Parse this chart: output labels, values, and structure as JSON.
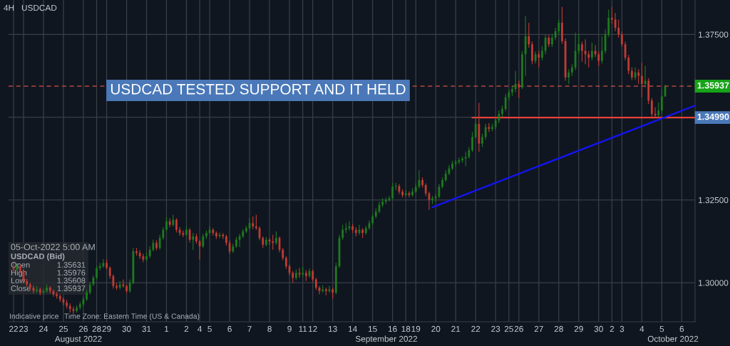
{
  "chart_data": {
    "type": "candlestick",
    "title": "4H",
    "subtitle": "USDCAD",
    "ylim": [
      1.2882,
      1.3854
    ],
    "categories": [
      "22",
      null,
      null,
      "23",
      null,
      null,
      null,
      null,
      null,
      "24",
      null,
      null,
      null,
      null,
      null,
      "25",
      null,
      null,
      null,
      null,
      null,
      "26",
      null,
      null,
      null,
      "28",
      null,
      null,
      "29",
      null,
      null,
      null,
      null,
      null,
      "30",
      null,
      null,
      null,
      null,
      null,
      "31",
      null,
      null,
      null,
      null,
      null,
      "1",
      null,
      null,
      null,
      null,
      null,
      "2",
      null,
      null,
      null,
      "4",
      null,
      null,
      "5",
      null,
      null,
      null,
      null,
      null,
      "6",
      null,
      null,
      null,
      null,
      null,
      "7",
      null,
      null,
      null,
      null,
      null,
      "8",
      null,
      null,
      null,
      null,
      null,
      "9",
      null,
      null,
      null,
      "11",
      null,
      null,
      "12",
      null,
      null,
      null,
      null,
      null,
      "13",
      null,
      null,
      null,
      null,
      null,
      "14",
      null,
      null,
      null,
      null,
      null,
      "15",
      null,
      null,
      null,
      null,
      null,
      "16",
      null,
      null,
      null,
      "18",
      null,
      null,
      "19",
      null,
      null,
      null,
      null,
      null,
      "20",
      null,
      null,
      null,
      null,
      null,
      "21",
      null,
      null,
      null,
      null,
      null,
      "22",
      null,
      null,
      null,
      null,
      null,
      "23",
      null,
      null,
      null,
      "25",
      null,
      null,
      "26",
      null,
      null,
      null,
      null,
      null,
      "27",
      null,
      null,
      null,
      null,
      null,
      "28",
      null,
      null,
      null,
      null,
      null,
      "29",
      null,
      null,
      null,
      null,
      null,
      "30",
      null,
      null,
      null,
      "2",
      null,
      null,
      "3",
      null,
      null,
      null,
      null,
      null,
      "4",
      null,
      null,
      null,
      null,
      null,
      "5",
      null,
      null,
      null,
      null,
      null,
      "6",
      null,
      null,
      null,
      null
    ],
    "yticks": [
      {
        "value": 1.3,
        "label": "1.30000"
      },
      {
        "value": 1.325,
        "label": "1.32500"
      },
      {
        "value": 1.35,
        "label": null
      },
      {
        "value": 1.375,
        "label": "1.37500"
      }
    ],
    "grid": true,
    "ohlc": [
      [
        1.3045,
        1.306,
        1.303,
        1.304
      ],
      [
        1.304,
        1.3058,
        1.3035,
        1.305
      ],
      [
        1.305,
        1.3055,
        1.3028,
        1.3035
      ],
      [
        1.3035,
        1.304,
        1.2998,
        1.3005
      ],
      [
        1.3005,
        1.3012,
        1.2988,
        1.2995
      ],
      [
        1.2995,
        1.3,
        1.2978,
        1.2985
      ],
      [
        1.2985,
        1.2992,
        1.2968,
        1.2975
      ],
      [
        1.2975,
        1.299,
        1.297,
        1.298
      ],
      [
        1.298,
        1.2985,
        1.2962,
        1.297
      ],
      [
        1.297,
        1.2982,
        1.2965,
        1.2975
      ],
      [
        1.2975,
        1.2995,
        1.297,
        1.2985
      ],
      [
        1.2985,
        1.299,
        1.2968,
        1.2975
      ],
      [
        1.2975,
        1.298,
        1.2958,
        1.2965
      ],
      [
        1.2965,
        1.2972,
        1.2952,
        1.296
      ],
      [
        1.296,
        1.2965,
        1.2942,
        1.295
      ],
      [
        1.295,
        1.2955,
        1.2932,
        1.294
      ],
      [
        1.294,
        1.2948,
        1.2922,
        1.293
      ],
      [
        1.293,
        1.2938,
        1.291,
        1.292
      ],
      [
        1.292,
        1.2928,
        1.2905,
        1.2915
      ],
      [
        1.2915,
        1.2932,
        1.291,
        1.2925
      ],
      [
        1.2925,
        1.2942,
        1.2918,
        1.2935
      ],
      [
        1.2935,
        1.2958,
        1.293,
        1.295
      ],
      [
        1.295,
        1.2978,
        1.2945,
        1.297
      ],
      [
        1.297,
        1.3002,
        1.2965,
        1.2995
      ],
      [
        1.2995,
        1.3022,
        1.299,
        1.3015
      ],
      [
        1.3015,
        1.3052,
        1.301,
        1.3045
      ],
      [
        1.3045,
        1.306,
        1.3038,
        1.305
      ],
      [
        1.305,
        1.3072,
        1.3045,
        1.306
      ],
      [
        1.306,
        1.307,
        1.304,
        1.3045
      ],
      [
        1.3045,
        1.305,
        1.3012,
        1.302
      ],
      [
        1.302,
        1.3025,
        1.2982,
        1.299
      ],
      [
        1.299,
        1.2998,
        1.2978,
        1.2985
      ],
      [
        1.2985,
        1.3005,
        1.298,
        1.2995
      ],
      [
        1.2995,
        1.301,
        1.2985,
        1.299
      ],
      [
        1.299,
        1.2995,
        1.2968,
        1.2975
      ],
      [
        1.2975,
        1.301,
        1.297,
        1.3
      ],
      [
        1.3,
        1.3105,
        1.2995,
        1.3095
      ],
      [
        1.3095,
        1.3105,
        1.3082,
        1.309
      ],
      [
        1.309,
        1.3098,
        1.3072,
        1.308
      ],
      [
        1.308,
        1.3088,
        1.3062,
        1.307
      ],
      [
        1.307,
        1.309,
        1.3065,
        1.308
      ],
      [
        1.308,
        1.311,
        1.3075,
        1.31
      ],
      [
        1.31,
        1.313,
        1.3095,
        1.312
      ],
      [
        1.312,
        1.3128,
        1.3098,
        1.3105
      ],
      [
        1.3105,
        1.3145,
        1.31,
        1.3135
      ],
      [
        1.3135,
        1.3168,
        1.313,
        1.316
      ],
      [
        1.316,
        1.3198,
        1.3155,
        1.3185
      ],
      [
        1.3185,
        1.3195,
        1.3168,
        1.3175
      ],
      [
        1.3175,
        1.3205,
        1.317,
        1.319
      ],
      [
        1.319,
        1.3195,
        1.3152,
        1.316
      ],
      [
        1.316,
        1.3168,
        1.3142,
        1.315
      ],
      [
        1.315,
        1.3158,
        1.3138,
        1.3145
      ],
      [
        1.3145,
        1.317,
        1.314,
        1.316
      ],
      [
        1.316,
        1.3165,
        1.3122,
        1.313
      ],
      [
        1.313,
        1.315,
        1.31,
        1.314
      ],
      [
        1.314,
        1.3148,
        1.3118,
        1.3125
      ],
      [
        1.3125,
        1.313,
        1.307,
        1.311
      ],
      [
        1.311,
        1.3148,
        1.3105,
        1.314
      ],
      [
        1.314,
        1.3158,
        1.3132,
        1.315
      ],
      [
        1.315,
        1.317,
        1.3145,
        1.316
      ],
      [
        1.316,
        1.3165,
        1.3142,
        1.315
      ],
      [
        1.315,
        1.3155,
        1.3132,
        1.314
      ],
      [
        1.314,
        1.3152,
        1.3135,
        1.3145
      ],
      [
        1.3145,
        1.315,
        1.3132,
        1.314
      ],
      [
        1.314,
        1.3145,
        1.3112,
        1.312
      ],
      [
        1.312,
        1.3128,
        1.3088,
        1.3095
      ],
      [
        1.3095,
        1.3118,
        1.309,
        1.311
      ],
      [
        1.311,
        1.3138,
        1.3105,
        1.313
      ],
      [
        1.313,
        1.3148,
        1.3108,
        1.314
      ],
      [
        1.314,
        1.3162,
        1.3135,
        1.3155
      ],
      [
        1.3155,
        1.3172,
        1.315,
        1.3165
      ],
      [
        1.3165,
        1.3195,
        1.316,
        1.318
      ],
      [
        1.318,
        1.32,
        1.3162,
        1.317
      ],
      [
        1.317,
        1.3205,
        1.316,
        1.3165
      ],
      [
        1.3165,
        1.317,
        1.3128,
        1.3135
      ],
      [
        1.3135,
        1.314,
        1.3105,
        1.3115
      ],
      [
        1.3115,
        1.3138,
        1.311,
        1.313
      ],
      [
        1.313,
        1.3135,
        1.3115,
        1.3125
      ],
      [
        1.3125,
        1.3145,
        1.31,
        1.312
      ],
      [
        1.312,
        1.3155,
        1.3115,
        1.3135
      ],
      [
        1.3135,
        1.314,
        1.3092,
        1.31
      ],
      [
        1.31,
        1.3105,
        1.3068,
        1.3075
      ],
      [
        1.3075,
        1.308,
        1.3042,
        1.305
      ],
      [
        1.305,
        1.3055,
        1.3022,
        1.303
      ],
      [
        1.303,
        1.3035,
        1.3,
        1.3015
      ],
      [
        1.3015,
        1.304,
        1.3008,
        1.303
      ],
      [
        1.303,
        1.3045,
        1.3015,
        1.3025
      ],
      [
        1.3025,
        1.3048,
        1.3018,
        1.303
      ],
      [
        1.303,
        1.3038,
        1.3005,
        1.302
      ],
      [
        1.302,
        1.3042,
        1.3015,
        1.3035
      ],
      [
        1.3035,
        1.304,
        1.3002,
        1.301
      ],
      [
        1.301,
        1.3015,
        1.2978,
        1.2985
      ],
      [
        1.2985,
        1.299,
        1.2965,
        1.2975
      ],
      [
        1.2975,
        1.2992,
        1.297,
        1.298
      ],
      [
        1.298,
        1.2985,
        1.2962,
        1.2975
      ],
      [
        1.2975,
        1.299,
        1.297,
        1.298
      ],
      [
        1.298,
        1.2985,
        1.2952,
        1.297
      ],
      [
        1.297,
        1.306,
        1.2965,
        1.305
      ],
      [
        1.305,
        1.3145,
        1.3045,
        1.3135
      ],
      [
        1.3135,
        1.3175,
        1.313,
        1.316
      ],
      [
        1.316,
        1.318,
        1.315,
        1.3165
      ],
      [
        1.3165,
        1.3185,
        1.3158,
        1.317
      ],
      [
        1.317,
        1.3178,
        1.315,
        1.316
      ],
      [
        1.316,
        1.3168,
        1.314,
        1.315
      ],
      [
        1.315,
        1.3175,
        1.3145,
        1.316
      ],
      [
        1.316,
        1.3165,
        1.3135,
        1.315
      ],
      [
        1.315,
        1.3172,
        1.3145,
        1.3165
      ],
      [
        1.3165,
        1.3188,
        1.316,
        1.318
      ],
      [
        1.318,
        1.3208,
        1.3175,
        1.32
      ],
      [
        1.32,
        1.3225,
        1.3195,
        1.3215
      ],
      [
        1.3215,
        1.3245,
        1.321,
        1.3235
      ],
      [
        1.3235,
        1.3255,
        1.3228,
        1.3245
      ],
      [
        1.3245,
        1.3258,
        1.3238,
        1.325
      ],
      [
        1.325,
        1.3262,
        1.3245,
        1.3255
      ],
      [
        1.3255,
        1.3302,
        1.325,
        1.329
      ],
      [
        1.329,
        1.3302,
        1.328,
        1.3292
      ],
      [
        1.3292,
        1.3298,
        1.3268,
        1.3275
      ],
      [
        1.3275,
        1.3282,
        1.3258,
        1.3265
      ],
      [
        1.3265,
        1.328,
        1.326,
        1.327
      ],
      [
        1.327,
        1.3276,
        1.3258,
        1.3265
      ],
      [
        1.3265,
        1.3285,
        1.326,
        1.3275
      ],
      [
        1.3275,
        1.33,
        1.327,
        1.329
      ],
      [
        1.329,
        1.334,
        1.3285,
        1.331
      ],
      [
        1.331,
        1.3318,
        1.3288,
        1.3295
      ],
      [
        1.3295,
        1.33,
        1.3262,
        1.327
      ],
      [
        1.327,
        1.3275,
        1.322,
        1.325
      ],
      [
        1.325,
        1.3262,
        1.3238,
        1.3255
      ],
      [
        1.3255,
        1.3268,
        1.3245,
        1.326
      ],
      [
        1.326,
        1.3298,
        1.3255,
        1.329
      ],
      [
        1.329,
        1.3318,
        1.3285,
        1.331
      ],
      [
        1.331,
        1.334,
        1.3305,
        1.333
      ],
      [
        1.333,
        1.3355,
        1.3325,
        1.3345
      ],
      [
        1.3345,
        1.3368,
        1.334,
        1.336
      ],
      [
        1.336,
        1.3372,
        1.3352,
        1.3365
      ],
      [
        1.3365,
        1.3378,
        1.3358,
        1.337
      ],
      [
        1.337,
        1.3382,
        1.3362,
        1.3375
      ],
      [
        1.3375,
        1.3395,
        1.3352,
        1.338
      ],
      [
        1.338,
        1.341,
        1.3375,
        1.34
      ],
      [
        1.34,
        1.3455,
        1.3395,
        1.344
      ],
      [
        1.344,
        1.35,
        1.3435,
        1.348
      ],
      [
        1.348,
        1.3543,
        1.3395,
        1.342
      ],
      [
        1.342,
        1.345,
        1.341,
        1.344
      ],
      [
        1.344,
        1.348,
        1.3432,
        1.347
      ],
      [
        1.347,
        1.3482,
        1.3455,
        1.3465
      ],
      [
        1.3465,
        1.348,
        1.3458,
        1.347
      ],
      [
        1.347,
        1.35,
        1.3462,
        1.349
      ],
      [
        1.349,
        1.352,
        1.3482,
        1.351
      ],
      [
        1.351,
        1.3535,
        1.35,
        1.3525
      ],
      [
        1.3525,
        1.357,
        1.3518,
        1.356
      ],
      [
        1.356,
        1.3582,
        1.355,
        1.3575
      ],
      [
        1.3575,
        1.3595,
        1.3565,
        1.3585
      ],
      [
        1.3585,
        1.364,
        1.3575,
        1.36
      ],
      [
        1.36,
        1.361,
        1.3558,
        1.359
      ],
      [
        1.359,
        1.37,
        1.3585,
        1.369
      ],
      [
        1.369,
        1.3805,
        1.3625,
        1.3745
      ],
      [
        1.3745,
        1.3785,
        1.371,
        1.372
      ],
      [
        1.372,
        1.3728,
        1.366,
        1.367
      ],
      [
        1.367,
        1.3698,
        1.3662,
        1.369
      ],
      [
        1.369,
        1.37,
        1.365,
        1.368
      ],
      [
        1.368,
        1.3715,
        1.3672,
        1.37
      ],
      [
        1.37,
        1.375,
        1.369,
        1.374
      ],
      [
        1.374,
        1.3748,
        1.3712,
        1.372
      ],
      [
        1.372,
        1.375,
        1.3712,
        1.374
      ],
      [
        1.374,
        1.377,
        1.3732,
        1.376
      ],
      [
        1.376,
        1.3795,
        1.3752,
        1.3785
      ],
      [
        1.3785,
        1.3833,
        1.3722,
        1.373
      ],
      [
        1.373,
        1.3738,
        1.361,
        1.362
      ],
      [
        1.362,
        1.3645,
        1.36,
        1.3635
      ],
      [
        1.3635,
        1.366,
        1.3625,
        1.365
      ],
      [
        1.365,
        1.3755,
        1.3642,
        1.37
      ],
      [
        1.37,
        1.3752,
        1.369,
        1.372
      ],
      [
        1.372,
        1.3728,
        1.3668,
        1.37
      ],
      [
        1.37,
        1.3735,
        1.366,
        1.369
      ],
      [
        1.369,
        1.37,
        1.365,
        1.368
      ],
      [
        1.368,
        1.3725,
        1.3672,
        1.37
      ],
      [
        1.37,
        1.3718,
        1.3682,
        1.369
      ],
      [
        1.369,
        1.3698,
        1.3655,
        1.367
      ],
      [
        1.367,
        1.3745,
        1.3662,
        1.37
      ],
      [
        1.37,
        1.3765,
        1.3692,
        1.375
      ],
      [
        1.375,
        1.3825,
        1.3742,
        1.38
      ],
      [
        1.38,
        1.3833,
        1.3782,
        1.3795
      ],
      [
        1.3795,
        1.3815,
        1.376,
        1.377
      ],
      [
        1.377,
        1.3795,
        1.374,
        1.375
      ],
      [
        1.375,
        1.3758,
        1.3712,
        1.372
      ],
      [
        1.372,
        1.3728,
        1.3672,
        1.368
      ],
      [
        1.368,
        1.3688,
        1.363,
        1.364
      ],
      [
        1.364,
        1.365,
        1.3612,
        1.362
      ],
      [
        1.362,
        1.365,
        1.3612,
        1.3635
      ],
      [
        1.3635,
        1.3645,
        1.36,
        1.3625
      ],
      [
        1.3625,
        1.3665,
        1.356,
        1.36
      ],
      [
        1.36,
        1.3655,
        1.359,
        1.361
      ],
      [
        1.361,
        1.3618,
        1.354,
        1.355
      ],
      [
        1.355,
        1.3558,
        1.3502,
        1.351
      ],
      [
        1.351,
        1.353,
        1.35,
        1.3505
      ],
      [
        1.3505,
        1.3545,
        1.35,
        1.352
      ],
      [
        1.352,
        1.3585,
        1.351,
        1.3563
      ],
      [
        1.35631,
        1.35976,
        1.35608,
        1.35937
      ],
      null,
      null,
      null,
      null,
      null,
      null,
      null,
      null,
      null
    ],
    "colors": [
      "#c23b32",
      "#1e7a1e",
      "#c23b32",
      "#c23b32",
      "#c23b32",
      "#c23b32",
      "#c23b32",
      "#1e7a1e",
      "#c23b32",
      "#1e7a1e",
      "#1e7a1e",
      "#c23b32",
      "#c23b32",
      "#c23b32",
      "#c23b32",
      "#c23b32",
      "#c23b32",
      "#c23b32",
      "#c23b32",
      "#1e7a1e",
      "#1e7a1e",
      "#1e7a1e",
      "#1e7a1e",
      "#1e7a1e",
      "#1e7a1e",
      "#1e7a1e",
      "#1e7a1e",
      "#1e7a1e",
      "#c23b32",
      "#c23b32",
      "#c23b32",
      "#c23b32",
      "#1e7a1e",
      "#c23b32",
      "#c23b32",
      "#1e7a1e",
      "#1e7a1e",
      "#c23b32",
      "#c23b32",
      "#c23b32",
      "#1e7a1e",
      "#1e7a1e",
      "#1e7a1e",
      "#c23b32",
      "#1e7a1e",
      "#1e7a1e",
      "#1e7a1e",
      "#c23b32",
      "#1e7a1e",
      "#c23b32",
      "#c23b32",
      "#c23b32",
      "#1e7a1e",
      "#c23b32",
      "#1e7a1e",
      "#c23b32",
      "#c23b32",
      "#1e7a1e",
      "#1e7a1e",
      "#1e7a1e",
      "#c23b32",
      "#c23b32",
      "#1e7a1e",
      "#c23b32",
      "#c23b32",
      "#c23b32",
      "#1e7a1e",
      "#1e7a1e",
      "#1e7a1e",
      "#1e7a1e",
      "#1e7a1e",
      "#1e7a1e",
      "#c23b32",
      "#c23b32",
      "#c23b32",
      "#c23b32",
      "#1e7a1e",
      "#c23b32",
      "#c23b32",
      "#1e7a1e",
      "#c23b32",
      "#c23b32",
      "#c23b32",
      "#c23b32",
      "#c23b32",
      "#1e7a1e",
      "#c23b32",
      "#1e7a1e",
      "#c23b32",
      "#1e7a1e",
      "#c23b32",
      "#c23b32",
      "#c23b32",
      "#1e7a1e",
      "#c23b32",
      "#1e7a1e",
      "#c23b32",
      "#1e7a1e",
      "#1e7a1e",
      "#1e7a1e",
      "#1e7a1e",
      "#1e7a1e",
      "#c23b32",
      "#c23b32",
      "#1e7a1e",
      "#c23b32",
      "#1e7a1e",
      "#1e7a1e",
      "#1e7a1e",
      "#1e7a1e",
      "#1e7a1e",
      "#1e7a1e",
      "#1e7a1e",
      "#1e7a1e",
      "#1e7a1e",
      "#1e7a1e",
      "#c23b32",
      "#c23b32",
      "#1e7a1e",
      "#c23b32",
      "#1e7a1e",
      "#1e7a1e",
      "#1e7a1e",
      "#c23b32",
      "#c23b32",
      "#c23b32",
      "#1e7a1e",
      "#1e7a1e",
      "#1e7a1e",
      "#1e7a1e",
      "#1e7a1e",
      "#1e7a1e",
      "#1e7a1e",
      "#1e7a1e",
      "#1e7a1e",
      "#1e7a1e",
      "#1e7a1e",
      "#1e7a1e",
      "#1e7a1e",
      "#1e7a1e",
      "#c23b32",
      "#1e7a1e",
      "#1e7a1e",
      "#c23b32",
      "#1e7a1e",
      "#1e7a1e",
      "#1e7a1e",
      "#1e7a1e",
      "#1e7a1e",
      "#1e7a1e",
      "#1e7a1e",
      "#1e7a1e",
      "#c23b32",
      "#1e7a1e",
      "#1e7a1e",
      "#c23b32",
      "#c23b32",
      "#1e7a1e",
      "#c23b32",
      "#1e7a1e",
      "#1e7a1e",
      "#c23b32",
      "#1e7a1e",
      "#1e7a1e",
      "#1e7a1e",
      "#c23b32",
      "#c23b32",
      "#1e7a1e",
      "#1e7a1e",
      "#1e7a1e",
      "#1e7a1e",
      "#c23b32",
      "#c23b32",
      "#c23b32",
      "#1e7a1e",
      "#c23b32",
      "#c23b32",
      "#1e7a1e",
      "#1e7a1e",
      "#1e7a1e",
      "#c23b32",
      "#c23b32",
      "#c23b32",
      "#c23b32",
      "#c23b32",
      "#c23b32",
      "#c23b32",
      "#1e7a1e",
      "#c23b32",
      "#c23b32",
      "#1e7a1e",
      "#c23b32",
      "#c23b32",
      "#c23b32",
      "#1e7a1e",
      "#1e7a1e",
      "#1e7a1e",
      null,
      null,
      null,
      null,
      null,
      null,
      null,
      null,
      null
    ],
    "series": [
      {
        "type": "line",
        "color": "#e8413a",
        "values": [
          null,
          null,
          null,
          null,
          null,
          null,
          null,
          null,
          null,
          null,
          null,
          null,
          null,
          null,
          null,
          null,
          null,
          null,
          null,
          null,
          null,
          null,
          null,
          null,
          null,
          null,
          null,
          null,
          null,
          null,
          null,
          null,
          null,
          null,
          null,
          null,
          null,
          null,
          null,
          null,
          null,
          null,
          null,
          null,
          null,
          null,
          null,
          null,
          null,
          null,
          null,
          null,
          null,
          null,
          null,
          null,
          null,
          null,
          null,
          null,
          null,
          null,
          null,
          null,
          null,
          null,
          null,
          null,
          null,
          null,
          null,
          null,
          null,
          null,
          null,
          null,
          null,
          null,
          null,
          null,
          null,
          null,
          null,
          null,
          null,
          null,
          null,
          null,
          null,
          null,
          null,
          null,
          null,
          null,
          null,
          null,
          null,
          null,
          null,
          null,
          null,
          null,
          null,
          null,
          null,
          null,
          null,
          null,
          null,
          null,
          null,
          null,
          null,
          null,
          null,
          null,
          null,
          null,
          null,
          null,
          null,
          null,
          null,
          null,
          null,
          null,
          null,
          null,
          null,
          null,
          null,
          null,
          null,
          null,
          null,
          null,
          null,
          null,
          1.3499,
          null,
          null,
          null,
          null,
          null,
          null,
          null,
          null,
          null,
          null,
          null,
          null,
          null,
          null,
          null,
          null,
          null,
          null,
          null,
          null,
          null,
          null,
          null,
          null,
          null,
          null,
          null,
          null,
          null,
          null,
          null,
          null,
          null,
          null,
          null,
          null,
          null,
          null,
          null,
          null,
          null,
          null,
          null,
          null,
          null,
          null,
          null,
          null,
          null,
          null,
          null,
          null,
          null,
          null,
          null,
          null,
          null,
          null,
          null,
          null,
          null,
          null,
          null,
          null,
          null,
          null,
          1.3499
        ]
      },
      {
        "type": "line",
        "color": "#1414f0",
        "values": [
          null,
          null,
          null,
          null,
          null,
          null,
          null,
          null,
          null,
          null,
          null,
          null,
          null,
          null,
          null,
          null,
          null,
          null,
          null,
          null,
          null,
          null,
          null,
          null,
          null,
          null,
          null,
          null,
          null,
          null,
          null,
          null,
          null,
          null,
          null,
          null,
          null,
          null,
          null,
          null,
          null,
          null,
          null,
          null,
          null,
          null,
          null,
          null,
          null,
          null,
          null,
          null,
          null,
          null,
          null,
          null,
          null,
          null,
          null,
          null,
          null,
          null,
          null,
          null,
          null,
          null,
          null,
          null,
          null,
          null,
          null,
          null,
          null,
          null,
          null,
          null,
          null,
          null,
          null,
          null,
          null,
          null,
          null,
          null,
          null,
          null,
          null,
          null,
          null,
          null,
          null,
          null,
          null,
          null,
          null,
          null,
          null,
          null,
          null,
          null,
          null,
          null,
          null,
          null,
          null,
          null,
          null,
          null,
          null,
          null,
          null,
          null,
          null,
          null,
          null,
          null,
          null,
          null,
          null,
          null,
          null,
          null,
          null,
          null,
          null,
          null,
          1.3228,
          null,
          null,
          null,
          null,
          null,
          null,
          null,
          null,
          null,
          null,
          null,
          null,
          null,
          null,
          null,
          null,
          null,
          null,
          null,
          null,
          null,
          null,
          null,
          null,
          null,
          null,
          null,
          null,
          null,
          null,
          null,
          null,
          null,
          null,
          null,
          null,
          null,
          null,
          null,
          null,
          null,
          null,
          null,
          null,
          null,
          null,
          null,
          null,
          null,
          null,
          null,
          null,
          null,
          null,
          null,
          null,
          null,
          null,
          null,
          null,
          null,
          null,
          null,
          null,
          null,
          null,
          null,
          null,
          null,
          null,
          null,
          null,
          null,
          null,
          null,
          null,
          null,
          null,
          1.3535
        ]
      }
    ],
    "ref_lines": [
      {
        "axis": "y",
        "value": 1.35937,
        "label": "1.35937",
        "color": "#b8463f",
        "line_style": "dashed"
      }
    ],
    "annotations": [
      "1.34990",
      "USDCAD TESTED SUPPORT AND IT HELD",
      "August 2022",
      "September 2022",
      "October 2022",
      "05-Oct-2022 5:00 AM",
      "USDCAD (Bid)",
      "Open",
      "1.35631",
      "High",
      "1.35976",
      "Low",
      "1.35608",
      "Close",
      "1.35937",
      "Indicative price",
      "Time Zone: Eastern Time (US & Canada)"
    ]
  }
}
